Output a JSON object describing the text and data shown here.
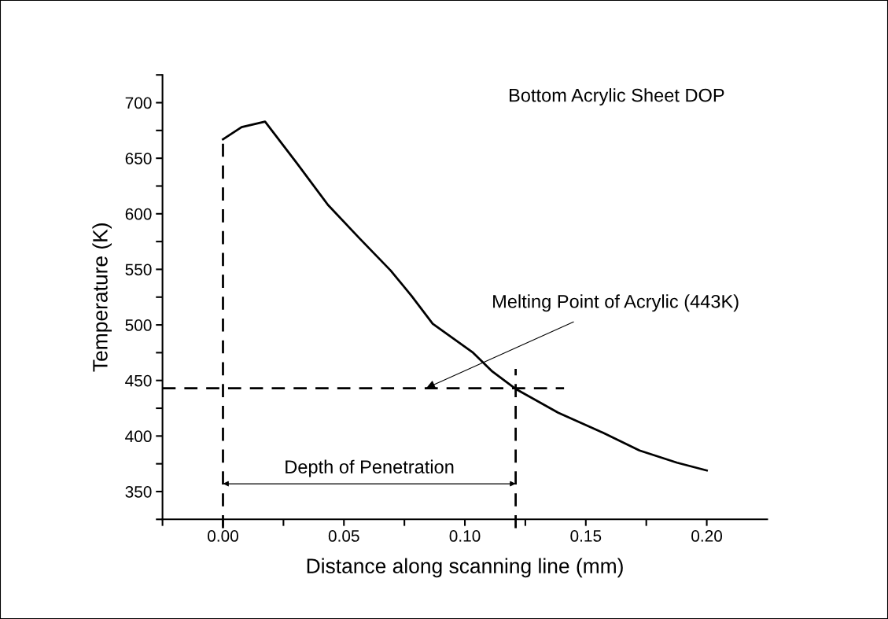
{
  "chart_data": {
    "type": "line",
    "title": "Bottom Acrylic Sheet DOP",
    "xlabel": "Distance along scanning line (mm)",
    "ylabel": "Temperature (K)",
    "x": [
      0,
      0.0077,
      0.0174,
      0.0304,
      0.0434,
      0.0564,
      0.0693,
      0.078,
      0.0867,
      0.1034,
      0.1114,
      0.1213,
      0.1386,
      0.157,
      0.1722,
      0.1877,
      0.2
    ],
    "series": [
      {
        "color": "#000000",
        "values": [
          667,
          678,
          683,
          646,
          608,
          578,
          549,
          526,
          501,
          475,
          458,
          442,
          421,
          403,
          387,
          376,
          369
        ]
      }
    ],
    "xlim": [
      -0.025,
      0.225
    ],
    "ylim": [
      325,
      725
    ],
    "xticks": [
      {
        "value": -0.025,
        "label": null
      },
      {
        "value": 0,
        "label": "0.00"
      },
      {
        "value": 0.025,
        "label": null
      },
      {
        "value": 0.05,
        "label": "0.05"
      },
      {
        "value": 0.075,
        "label": null
      },
      {
        "value": 0.1,
        "label": "0.10"
      },
      {
        "value": 0.125,
        "label": null
      },
      {
        "value": 0.15,
        "label": "0.15"
      },
      {
        "value": 0.175,
        "label": null
      },
      {
        "value": 0.2,
        "label": "0.20"
      }
    ],
    "yticks": [
      {
        "value": 325,
        "label": null
      },
      350,
      {
        "value": 375,
        "label": null
      },
      400,
      {
        "value": 425,
        "label": null
      },
      450,
      {
        "value": 475,
        "label": null
      },
      500,
      {
        "value": 525,
        "label": null
      },
      550,
      {
        "value": 575,
        "label": null
      },
      600,
      {
        "value": 625,
        "label": null
      },
      650,
      {
        "value": 675,
        "label": null
      },
      700,
      {
        "value": 725,
        "label": null
      }
    ],
    "ref_lines": [
      {
        "axis": "x",
        "value": 0,
        "color": "#000000",
        "line_style": "dashed"
      },
      {
        "axis": "x",
        "value": 0.121,
        "color": "#000000",
        "line_style": "dashed"
      },
      {
        "axis": "y",
        "value": 443,
        "color": "#000000",
        "line_style": "dashed"
      }
    ],
    "annotations": [
      {
        "text": "Melting Point of Acrylic (443K)",
        "x": 0.084,
        "y": 443
      },
      "Depth of Penetration"
    ],
    "grid": false,
    "legend": false,
    "marker": "none",
    "line_style": "solid"
  }
}
